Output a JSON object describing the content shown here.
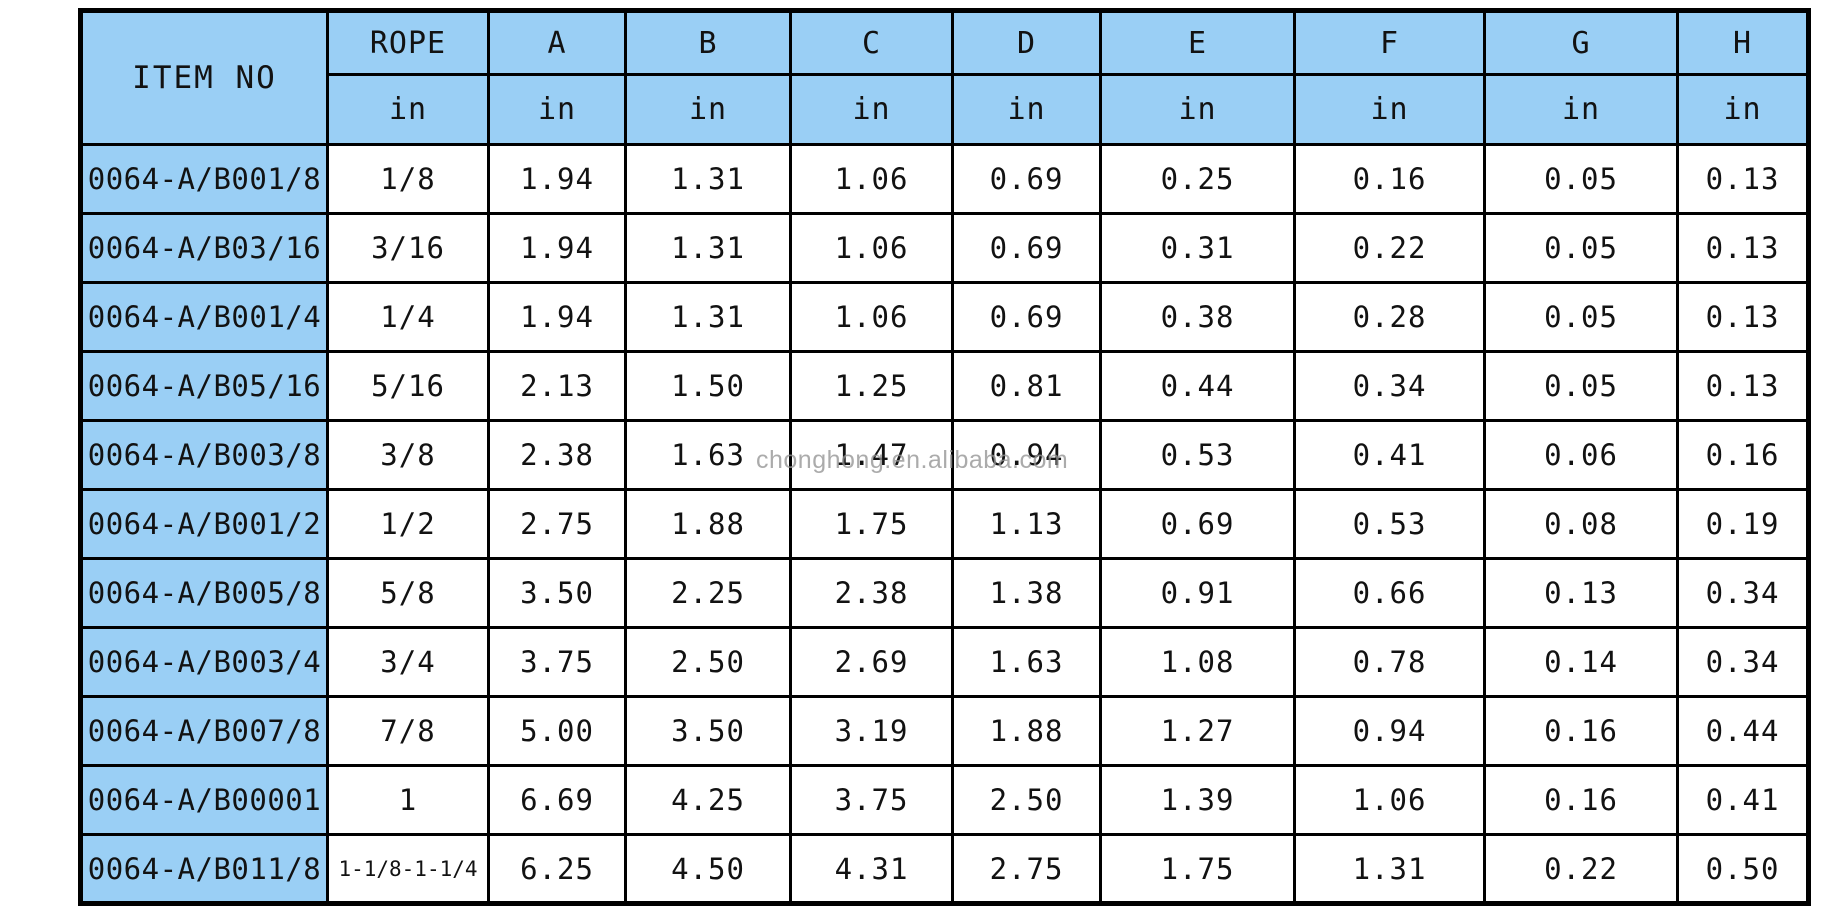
{
  "colors": {
    "header_bg": "#9ACFF5",
    "border": "#000000",
    "text": "#121212",
    "watermark_gray": "#949494"
  },
  "watermark": "chonghong.en.alibaba.com",
  "table": {
    "item_no_header": "ITEM NO",
    "columns": [
      {
        "label": "ROPE",
        "unit": "in"
      },
      {
        "label": "A",
        "unit": "in"
      },
      {
        "label": "B",
        "unit": "in"
      },
      {
        "label": "C",
        "unit": "in"
      },
      {
        "label": "D",
        "unit": "in"
      },
      {
        "label": "E",
        "unit": "in"
      },
      {
        "label": "F",
        "unit": "in"
      },
      {
        "label": "G",
        "unit": "in"
      },
      {
        "label": "H",
        "unit": "in"
      }
    ],
    "rows": [
      {
        "item_no": "0064-A/B001/8",
        "values": [
          "1/8",
          "1.94",
          "1.31",
          "1.06",
          "0.69",
          "0.25",
          "0.16",
          "0.05",
          "0.13"
        ]
      },
      {
        "item_no": "0064-A/B03/16",
        "values": [
          "3/16",
          "1.94",
          "1.31",
          "1.06",
          "0.69",
          "0.31",
          "0.22",
          "0.05",
          "0.13"
        ]
      },
      {
        "item_no": "0064-A/B001/4",
        "values": [
          "1/4",
          "1.94",
          "1.31",
          "1.06",
          "0.69",
          "0.38",
          "0.28",
          "0.05",
          "0.13"
        ]
      },
      {
        "item_no": "0064-A/B05/16",
        "values": [
          "5/16",
          "2.13",
          "1.50",
          "1.25",
          "0.81",
          "0.44",
          "0.34",
          "0.05",
          "0.13"
        ]
      },
      {
        "item_no": "0064-A/B003/8",
        "values": [
          "3/8",
          "2.38",
          "1.63",
          "1.47",
          "0.94",
          "0.53",
          "0.41",
          "0.06",
          "0.16"
        ]
      },
      {
        "item_no": "0064-A/B001/2",
        "values": [
          "1/2",
          "2.75",
          "1.88",
          "1.75",
          "1.13",
          "0.69",
          "0.53",
          "0.08",
          "0.19"
        ]
      },
      {
        "item_no": "0064-A/B005/8",
        "values": [
          "5/8",
          "3.50",
          "2.25",
          "2.38",
          "1.38",
          "0.91",
          "0.66",
          "0.13",
          "0.34"
        ]
      },
      {
        "item_no": "0064-A/B003/4",
        "values": [
          "3/4",
          "3.75",
          "2.50",
          "2.69",
          "1.63",
          "1.08",
          "0.78",
          "0.14",
          "0.34"
        ]
      },
      {
        "item_no": "0064-A/B007/8",
        "values": [
          "7/8",
          "5.00",
          "3.50",
          "3.19",
          "1.88",
          "1.27",
          "0.94",
          "0.16",
          "0.44"
        ]
      },
      {
        "item_no": "0064-A/B00001",
        "values": [
          "1",
          "6.69",
          "4.25",
          "3.75",
          "2.50",
          "1.39",
          "1.06",
          "0.16",
          "0.41"
        ]
      },
      {
        "item_no": "0064-A/B011/8",
        "values": [
          "1-1/8-1-1/4",
          "6.25",
          "4.50",
          "4.31",
          "2.75",
          "1.75",
          "1.31",
          "0.22",
          "0.50"
        ]
      }
    ]
  }
}
